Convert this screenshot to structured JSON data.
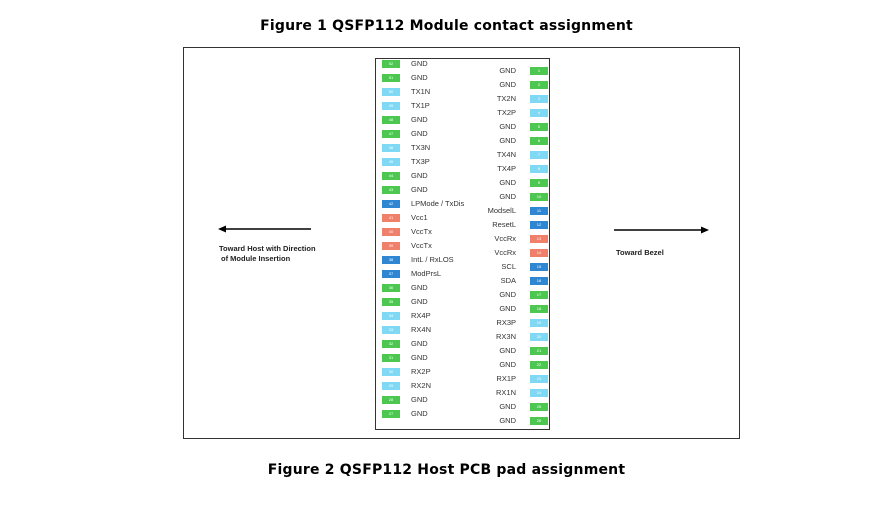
{
  "figure1_caption": "Figure  1 QSFP112 Module contact assignment",
  "figure2_caption": "Figure  2 QSFP112 Host PCB pad assignment",
  "host_direction_label_line1": "Toward Host with Direction",
  "host_direction_label_line2": "of Module Insertion",
  "bezel_direction_label": "Toward Bezel",
  "colors": {
    "gnd": "#4cc850",
    "highspeed": "#7fd8f4",
    "lowspeed": "#2f86d2",
    "power": "#f0806a"
  },
  "left_pins": [
    {
      "num": "52",
      "label": "GND",
      "type": "gnd"
    },
    {
      "num": "51",
      "label": "GND",
      "type": "gnd"
    },
    {
      "num": "50",
      "label": "TX1N",
      "type": "highspeed"
    },
    {
      "num": "49",
      "label": "TX1P",
      "type": "highspeed"
    },
    {
      "num": "48",
      "label": "GND",
      "type": "gnd"
    },
    {
      "num": "47",
      "label": "GND",
      "type": "gnd"
    },
    {
      "num": "46",
      "label": "TX3N",
      "type": "highspeed"
    },
    {
      "num": "45",
      "label": "TX3P",
      "type": "highspeed"
    },
    {
      "num": "44",
      "label": "GND",
      "type": "gnd"
    },
    {
      "num": "43",
      "label": "GND",
      "type": "gnd"
    },
    {
      "num": "42",
      "label": "LPMode / TxDis",
      "type": "lowspeed"
    },
    {
      "num": "41",
      "label": "Vcc1",
      "type": "power"
    },
    {
      "num": "40",
      "label": "VccTx",
      "type": "power"
    },
    {
      "num": "39",
      "label": "VccTx",
      "type": "power"
    },
    {
      "num": "38",
      "label": "IntL / RxLOS",
      "type": "lowspeed"
    },
    {
      "num": "37",
      "label": "ModPrsL",
      "type": "lowspeed"
    },
    {
      "num": "36",
      "label": "GND",
      "type": "gnd"
    },
    {
      "num": "35",
      "label": "GND",
      "type": "gnd"
    },
    {
      "num": "34",
      "label": "RX4P",
      "type": "highspeed"
    },
    {
      "num": "33",
      "label": "RX4N",
      "type": "highspeed"
    },
    {
      "num": "32",
      "label": "GND",
      "type": "gnd"
    },
    {
      "num": "31",
      "label": "GND",
      "type": "gnd"
    },
    {
      "num": "30",
      "label": "RX2P",
      "type": "highspeed"
    },
    {
      "num": "29",
      "label": "RX2N",
      "type": "highspeed"
    },
    {
      "num": "28",
      "label": "GND",
      "type": "gnd"
    },
    {
      "num": "27",
      "label": "GND",
      "type": "gnd"
    }
  ],
  "right_pins": [
    {
      "num": "1",
      "label": "GND",
      "type": "gnd"
    },
    {
      "num": "2",
      "label": "GND",
      "type": "gnd"
    },
    {
      "num": "3",
      "label": "TX2N",
      "type": "highspeed"
    },
    {
      "num": "4",
      "label": "TX2P",
      "type": "highspeed"
    },
    {
      "num": "5",
      "label": "GND",
      "type": "gnd"
    },
    {
      "num": "6",
      "label": "GND",
      "type": "gnd"
    },
    {
      "num": "7",
      "label": "TX4N",
      "type": "highspeed"
    },
    {
      "num": "8",
      "label": "TX4P",
      "type": "highspeed"
    },
    {
      "num": "9",
      "label": "GND",
      "type": "gnd"
    },
    {
      "num": "10",
      "label": "GND",
      "type": "gnd"
    },
    {
      "num": "11",
      "label": "ModselL",
      "type": "lowspeed"
    },
    {
      "num": "12",
      "label": "ResetL",
      "type": "lowspeed"
    },
    {
      "num": "13",
      "label": "VccRx",
      "type": "power"
    },
    {
      "num": "14",
      "label": "VccRx",
      "type": "power"
    },
    {
      "num": "15",
      "label": "SCL",
      "type": "lowspeed"
    },
    {
      "num": "16",
      "label": "SDA",
      "type": "lowspeed"
    },
    {
      "num": "17",
      "label": "GND",
      "type": "gnd"
    },
    {
      "num": "18",
      "label": "GND",
      "type": "gnd"
    },
    {
      "num": "19",
      "label": "RX3P",
      "type": "highspeed"
    },
    {
      "num": "20",
      "label": "RX3N",
      "type": "highspeed"
    },
    {
      "num": "21",
      "label": "GND",
      "type": "gnd"
    },
    {
      "num": "22",
      "label": "GND",
      "type": "gnd"
    },
    {
      "num": "23",
      "label": "RX1P",
      "type": "highspeed"
    },
    {
      "num": "24",
      "label": "RX1N",
      "type": "highspeed"
    },
    {
      "num": "25",
      "label": "GND",
      "type": "gnd"
    },
    {
      "num": "26",
      "label": "GND",
      "type": "gnd"
    }
  ]
}
